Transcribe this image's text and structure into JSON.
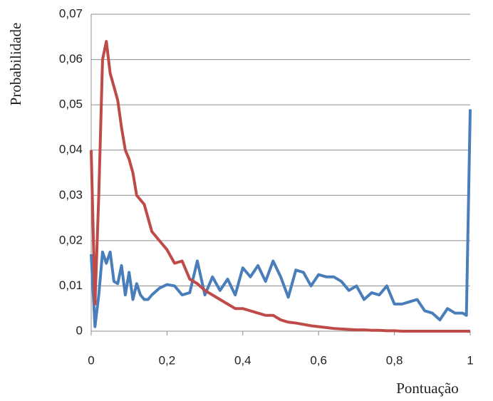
{
  "chart_data": {
    "type": "line",
    "x_label": "Pontuação",
    "y_label": "Probabilidade",
    "x": [
      0,
      0.01,
      0.02,
      0.03,
      0.04,
      0.05,
      0.06,
      0.07,
      0.08,
      0.09,
      0.1,
      0.11,
      0.12,
      0.13,
      0.14,
      0.15,
      0.16,
      0.18,
      0.2,
      0.22,
      0.24,
      0.26,
      0.28,
      0.3,
      0.32,
      0.34,
      0.36,
      0.38,
      0.4,
      0.42,
      0.44,
      0.46,
      0.48,
      0.5,
      0.52,
      0.54,
      0.56,
      0.58,
      0.6,
      0.62,
      0.64,
      0.66,
      0.68,
      0.7,
      0.72,
      0.74,
      0.76,
      0.78,
      0.8,
      0.82,
      0.84,
      0.86,
      0.88,
      0.9,
      0.92,
      0.94,
      0.96,
      0.98,
      0.99,
      1.0
    ],
    "series": [
      {
        "color": "#4a7ebb",
        "values": [
          0.017,
          0.001,
          0.008,
          0.0175,
          0.015,
          0.0175,
          0.011,
          0.0105,
          0.0145,
          0.008,
          0.013,
          0.007,
          0.0105,
          0.008,
          0.007,
          0.007,
          0.008,
          0.0095,
          0.0103,
          0.01,
          0.008,
          0.0085,
          0.0155,
          0.008,
          0.012,
          0.009,
          0.0115,
          0.008,
          0.014,
          0.012,
          0.0145,
          0.011,
          0.0155,
          0.012,
          0.0075,
          0.0135,
          0.013,
          0.01,
          0.0125,
          0.012,
          0.012,
          0.011,
          0.009,
          0.01,
          0.007,
          0.0085,
          0.008,
          0.01,
          0.006,
          0.006,
          0.0065,
          0.007,
          0.0045,
          0.004,
          0.0025,
          0.005,
          0.004,
          0.004,
          0.0035,
          0.049
        ]
      },
      {
        "color": "#be4b48",
        "values": [
          0.04,
          0.006,
          0.03,
          0.06,
          0.064,
          0.057,
          0.054,
          0.051,
          0.045,
          0.04,
          0.038,
          0.035,
          0.03,
          0.029,
          0.028,
          0.025,
          0.022,
          0.02,
          0.018,
          0.015,
          0.0155,
          0.0115,
          0.0105,
          0.009,
          0.008,
          0.007,
          0.006,
          0.005,
          0.005,
          0.0045,
          0.004,
          0.0035,
          0.0035,
          0.0025,
          0.002,
          0.0018,
          0.0015,
          0.0012,
          0.001,
          0.0008,
          0.0006,
          0.0005,
          0.0004,
          0.0003,
          0.0003,
          0.0002,
          0.0002,
          0.0001,
          0.0001,
          0,
          0,
          0,
          0,
          0,
          0,
          0,
          0,
          0,
          0,
          0
        ]
      }
    ],
    "xlim": [
      0,
      1
    ],
    "xticks": [
      0,
      {
        "value": 0.2,
        "label": "0,2"
      },
      {
        "value": 0.4,
        "label": "0,4"
      },
      {
        "value": 0.6,
        "label": "0,6"
      },
      {
        "value": 0.8,
        "label": "0,8"
      },
      1
    ],
    "ylim": [
      0,
      0.07
    ],
    "yticks": [
      0,
      {
        "value": 0.01,
        "label": "0,01"
      },
      {
        "value": 0.02,
        "label": "0,02"
      },
      {
        "value": 0.03,
        "label": "0,03"
      },
      {
        "value": 0.04,
        "label": "0,04"
      },
      {
        "value": 0.05,
        "label": "0,05"
      },
      {
        "value": 0.06,
        "label": "0,06"
      },
      {
        "value": 0.07,
        "label": "0,07"
      }
    ],
    "grid": true
  }
}
